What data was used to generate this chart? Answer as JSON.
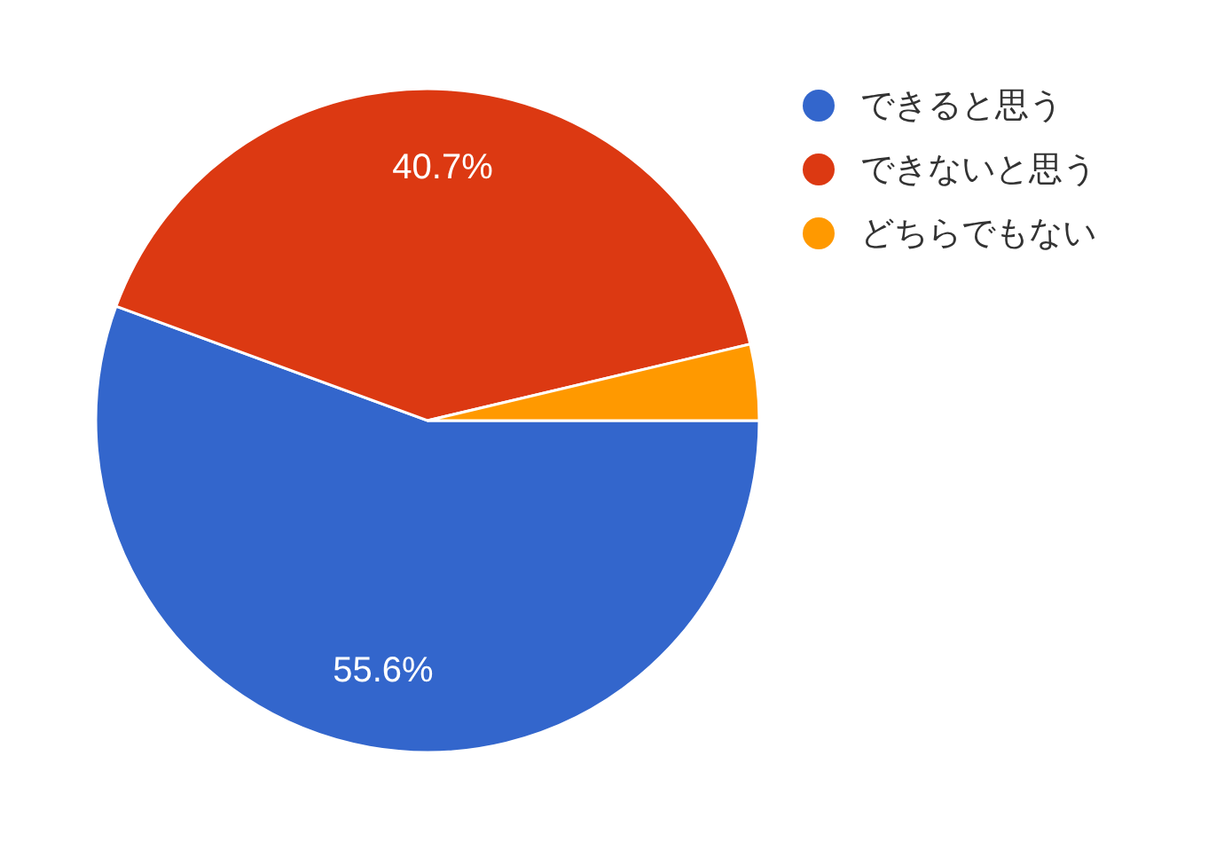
{
  "chart_data": {
    "type": "pie",
    "categories": [
      "できると思う",
      "できないと思う",
      "どちらでもない"
    ],
    "values": [
      55.6,
      40.7,
      3.7
    ],
    "colors": [
      "#3366cc",
      "#dc3912",
      "#ff9900"
    ],
    "value_labels": [
      "55.6%",
      "40.7%",
      null
    ],
    "legend": "top right"
  }
}
